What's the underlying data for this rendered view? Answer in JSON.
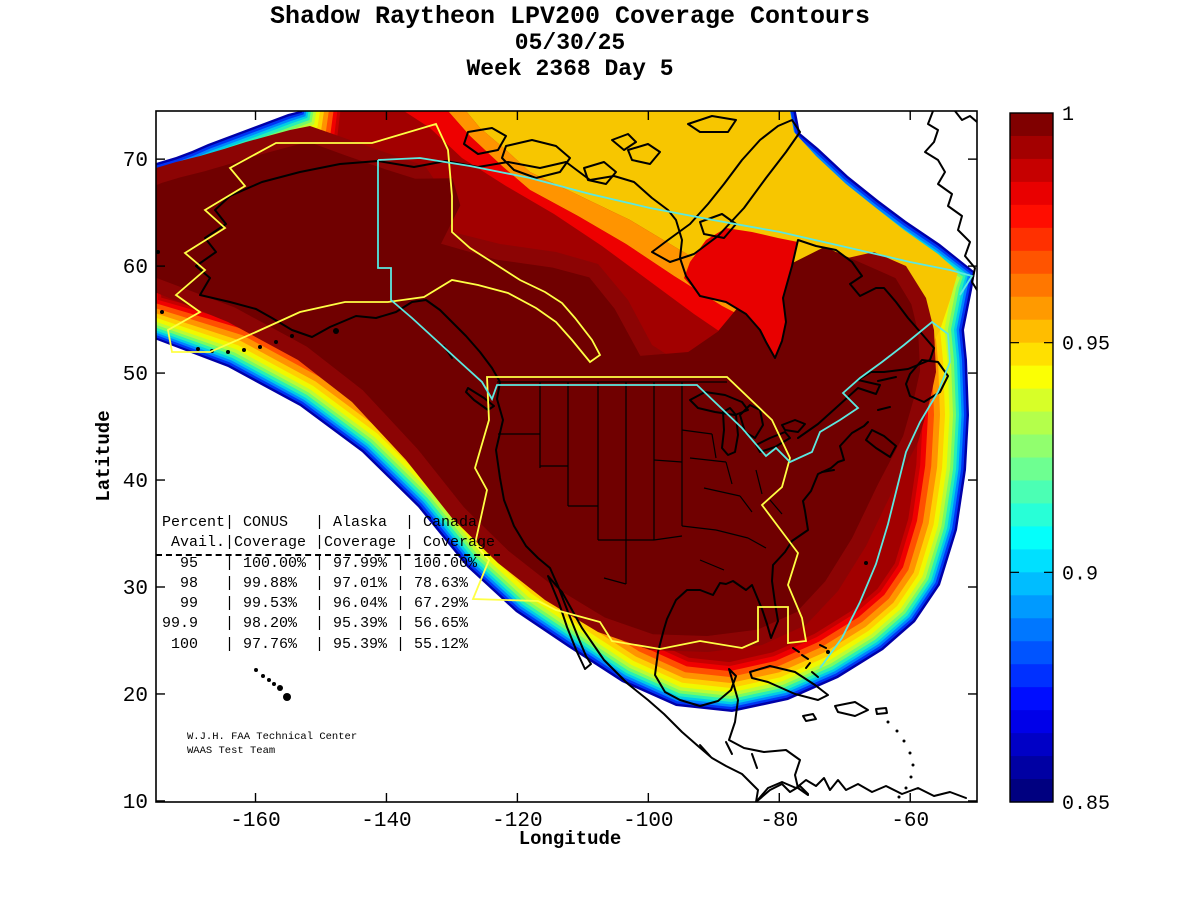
{
  "title": {
    "line1": "Shadow Raytheon LPV200 Coverage Contours",
    "line2": "05/30/25",
    "line3": "Week 2368 Day 5"
  },
  "axes": {
    "xlabel": "Longitude",
    "ylabel": "Latitude",
    "x_tick_labels": [
      "-160",
      "-140",
      "-120",
      "-100",
      "-80",
      "-60"
    ],
    "x_tick_values": [
      -160,
      -140,
      -120,
      -100,
      -80,
      -60
    ],
    "y_tick_labels": [
      "10",
      "20",
      "30",
      "40",
      "50",
      "60",
      "70"
    ],
    "y_tick_values": [
      10,
      20,
      30,
      40,
      50,
      60,
      70
    ],
    "x_range": [
      -175.2,
      -49.8
    ],
    "y_range": [
      9.9,
      74.5
    ]
  },
  "colorbar": {
    "tick_labels": [
      "1",
      "0.95",
      "0.9",
      "0.85"
    ],
    "tick_values": [
      1,
      0.95,
      0.9,
      0.85
    ],
    "min": 0.85,
    "max": 1.0,
    "colormap": "jet"
  },
  "coverage_table": {
    "lines": [
      "Percent| CONUS   | Alaska  | Canada",
      " Avail.|Coverage |Coverage | Coverage",
      "  95   | 100.00% | 97.99% | 100.00%",
      "  98   | 99.88%  | 97.01% | 78.63%",
      "  99   | 99.53%  | 96.04% | 67.29%",
      "99.9   | 98.20%  | 95.39% | 56.65%",
      " 100   | 97.76%  | 95.39% | 55.12%"
    ]
  },
  "credit": {
    "lines": [
      "W.J.H. FAA Technical Center",
      "WAAS Test Team"
    ]
  },
  "colors": {
    "background": "#FFFFFF",
    "conus_boundary": "#FFFF44",
    "alaska_boundary": "#FFFF44",
    "canada_boundary": "#5CE8E0",
    "coastline": "#000000",
    "band_colors": [
      "#0000A8",
      "#0034F4",
      "#0084FF",
      "#00CCE8",
      "#28F0B4",
      "#78FC64",
      "#BCFC34",
      "#F0F800",
      "#FFD000",
      "#FF9400",
      "#FF5000",
      "#F00000",
      "#C60000",
      "#A20000"
    ],
    "core": "#8C0404",
    "core_inner": "#700000",
    "gold_zone": "#F7C600",
    "orange_zone": "#FF9400",
    "red_zone": "#EE0000",
    "hudson_bay": "#E80000"
  },
  "chart_data": {
    "type": "heatmap",
    "title": "Shadow Raytheon LPV200 Coverage Contours",
    "subtitle_date": "05/30/25",
    "gps_week": 2368,
    "gps_day": 5,
    "xlabel": "Longitude",
    "ylabel": "Latitude",
    "x_ticks": [
      -160,
      -140,
      -120,
      -100,
      -80,
      -60
    ],
    "y_ticks": [
      10,
      20,
      30,
      40,
      50,
      60,
      70
    ],
    "colorbar_range": [
      0.85,
      1.0
    ],
    "colorbar_ticks": [
      1,
      0.95,
      0.9,
      0.85
    ],
    "colormap": "jet",
    "legend_position": "right",
    "availability_table": {
      "columns": [
        "Percent Avail.",
        "CONUS Coverage",
        "Alaska Coverage",
        "Canada Coverage"
      ],
      "rows": [
        [
          "95",
          "100.00%",
          "97.99%",
          "100.00%"
        ],
        [
          "98",
          "99.88%",
          "97.01%",
          "78.63%"
        ],
        [
          "99",
          "99.53%",
          "96.04%",
          "67.29%"
        ],
        [
          "99.9",
          "98.20%",
          "95.39%",
          "56.65%"
        ],
        [
          "100",
          "97.76%",
          "95.39%",
          "55.12%"
        ]
      ]
    }
  }
}
